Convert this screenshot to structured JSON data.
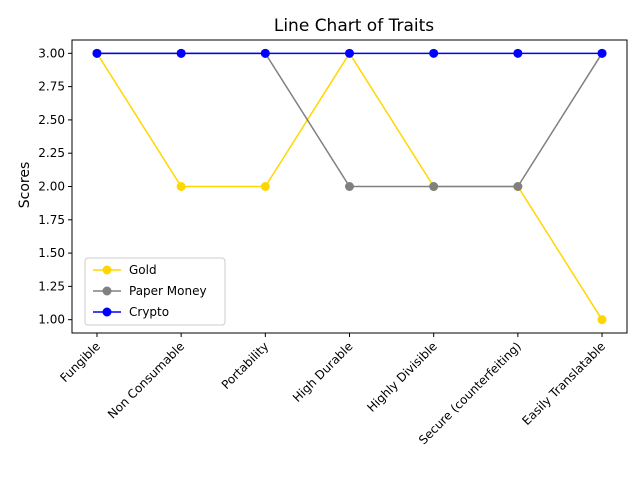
{
  "chart_data": {
    "type": "line",
    "title": "Line Chart of Traits",
    "xlabel": "",
    "ylabel": "Scores",
    "categories": [
      "Fungible",
      "Non Consumable",
      "Portability",
      "High Durable",
      "Highly Divisible",
      "Secure (counterfeiting)",
      "Easily Translatable"
    ],
    "series": [
      {
        "name": "Gold",
        "color": "#ffd700",
        "values": [
          3,
          2,
          2,
          3,
          2,
          2,
          1
        ]
      },
      {
        "name": "Paper Money",
        "color": "#808080",
        "values": [
          3,
          3,
          3,
          2,
          2,
          2,
          3
        ]
      },
      {
        "name": "Crypto",
        "color": "#0000ff",
        "values": [
          3,
          3,
          3,
          3,
          3,
          3,
          3
        ]
      }
    ],
    "ylim": [
      0.9,
      3.1
    ],
    "yticks": [
      1.0,
      1.25,
      1.5,
      1.75,
      2.0,
      2.25,
      2.5,
      2.75,
      3.0
    ],
    "ytick_labels": [
      "1.00",
      "1.25",
      "1.50",
      "1.75",
      "2.00",
      "2.25",
      "2.50",
      "2.75",
      "3.00"
    ],
    "grid": false,
    "legend_position": "lower-left",
    "marker": "circle"
  }
}
